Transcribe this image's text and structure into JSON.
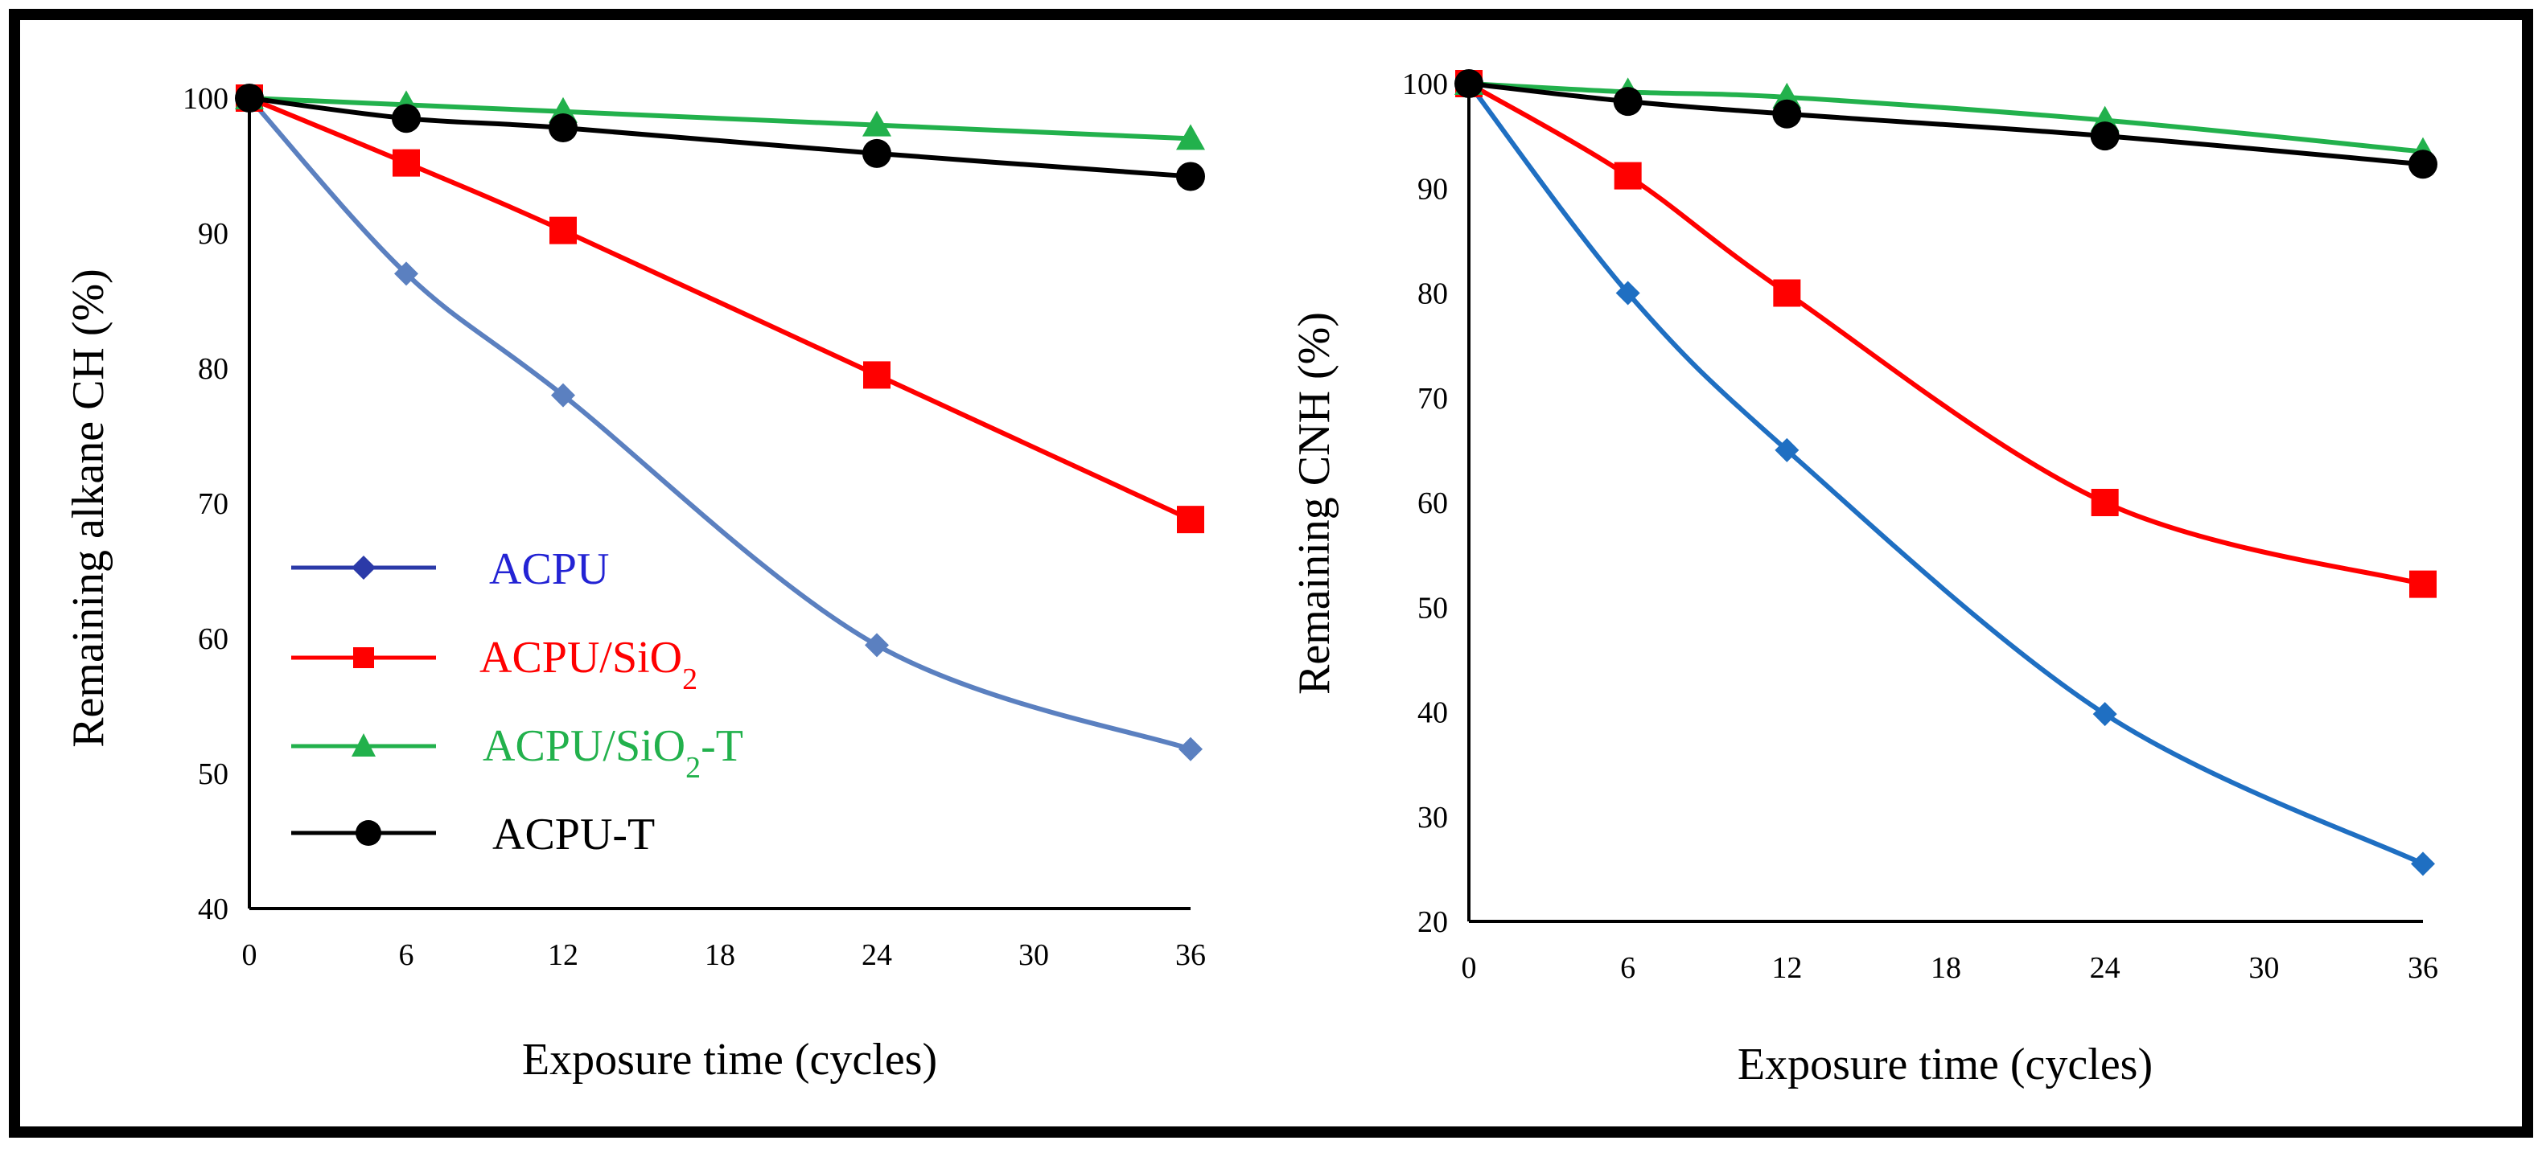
{
  "colors": {
    "ACPU_left": "#5b80c0",
    "ACPU_right": "#1f6fc2",
    "ACPU_legend": "#2b3aa8",
    "ACPU_label": "#2323d4",
    "SiO2": "#ff0000",
    "SiO2_T": "#22b14c",
    "T": "#000000",
    "frame": "#000000"
  },
  "chart_data": [
    {
      "type": "line",
      "title": "",
      "xlabel": "Exposure time (cycles)",
      "ylabel": "Remaining alkane CH (%)",
      "xlim": [
        0,
        36
      ],
      "ylim": [
        40,
        100
      ],
      "xticks": [
        "0",
        "6",
        "12",
        "18",
        "24",
        "30",
        "36"
      ],
      "yticks": [
        "40",
        "50",
        "60",
        "70",
        "80",
        "90",
        "100"
      ],
      "x": [
        0,
        6,
        12,
        24,
        36
      ],
      "legend_position": "center-left",
      "series": [
        {
          "key": "acpu",
          "name": "ACPU",
          "color_key": "ACPU_left",
          "marker": "diamond",
          "values": [
            100,
            87,
            78,
            59.5,
            51.8
          ]
        },
        {
          "key": "sio2",
          "name": "ACPU/SiO",
          "sub": "2",
          "suffix": "",
          "color_key": "SiO2",
          "marker": "square",
          "values": [
            100,
            95.2,
            90.2,
            79.5,
            68.8
          ]
        },
        {
          "key": "sio2t",
          "name": "ACPU/SiO",
          "sub": "2",
          "suffix": "-T",
          "color_key": "SiO2_T",
          "marker": "triangle",
          "values": [
            100,
            99.5,
            99,
            98,
            97
          ]
        },
        {
          "key": "t",
          "name": "ACPU-T",
          "color_key": "T",
          "marker": "circle",
          "values": [
            100,
            98.5,
            97.8,
            95.9,
            94.2
          ]
        }
      ]
    },
    {
      "type": "line",
      "title": "",
      "xlabel": "Exposure time (cycles)",
      "ylabel": "Remaining CNH (%)",
      "xlim": [
        0,
        36
      ],
      "ylim": [
        20,
        100
      ],
      "xticks": [
        "0",
        "6",
        "12",
        "18",
        "24",
        "30",
        "36"
      ],
      "yticks": [
        "20",
        "30",
        "40",
        "50",
        "60",
        "70",
        "80",
        "90",
        "100"
      ],
      "x": [
        0,
        6,
        12,
        24,
        36
      ],
      "series": [
        {
          "key": "acpu",
          "name": "ACPU",
          "color_key": "ACPU_right",
          "marker": "diamond",
          "values": [
            100,
            80,
            65,
            39.8,
            25.5
          ]
        },
        {
          "key": "sio2",
          "name": "ACPU/SiO2",
          "color_key": "SiO2",
          "marker": "square",
          "values": [
            100,
            91.2,
            80,
            60,
            52.2
          ]
        },
        {
          "key": "sio2t",
          "name": "ACPU/SiO2-T",
          "color_key": "SiO2_T",
          "marker": "triangle",
          "values": [
            100,
            99.2,
            98.7,
            96.5,
            93.5
          ]
        },
        {
          "key": "t",
          "name": "ACPU-T",
          "color_key": "T",
          "marker": "circle",
          "values": [
            100,
            98.3,
            97.1,
            95,
            92.3
          ]
        }
      ]
    }
  ]
}
